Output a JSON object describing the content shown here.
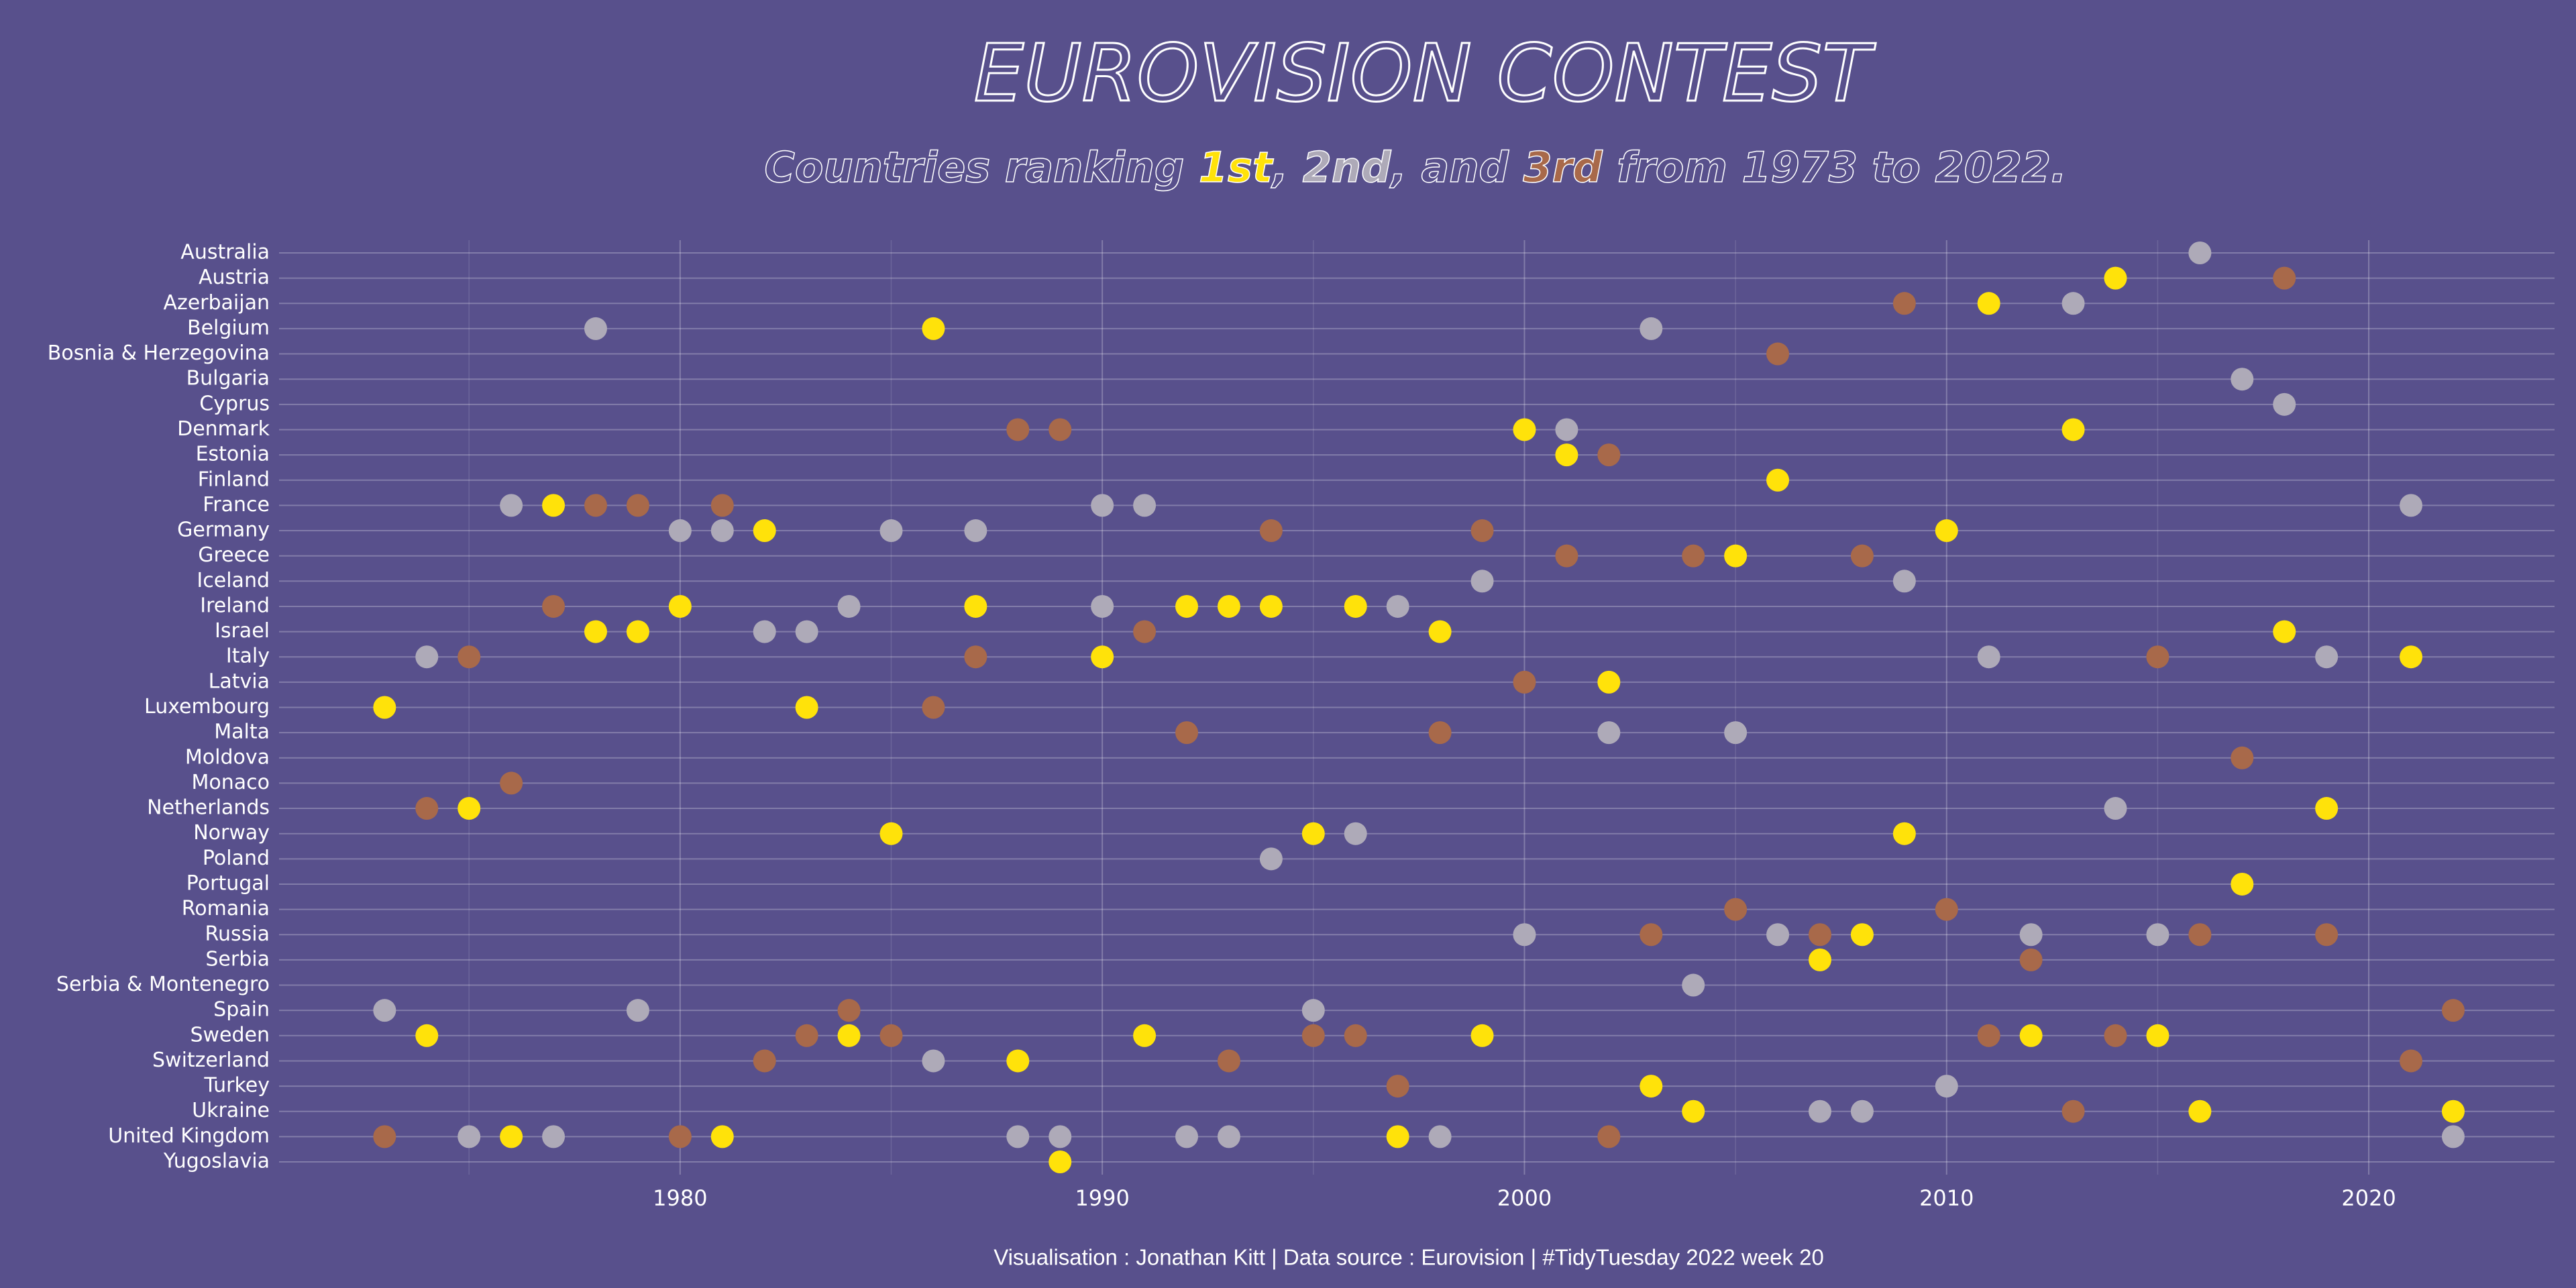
{
  "chart_data": {
    "type": "scatter",
    "title": "EUROVISION CONTEST",
    "subtitle": [
      "Countries ranking ",
      ", ",
      ", and ",
      " from 1973 to 2022."
    ],
    "caption": "Visualisation : Jonathan Kitt | Data source : Eurovision | #TidyTuesday 2022 week 20",
    "categories": [
      "Australia",
      "Austria",
      "Azerbaijan",
      "Belgium",
      "Bosnia & Herzegovina",
      "Bulgaria",
      "Cyprus",
      "Denmark",
      "Estonia",
      "Finland",
      "France",
      "Germany",
      "Greece",
      "Iceland",
      "Ireland",
      "Israel",
      "Italy",
      "Latvia",
      "Luxembourg",
      "Malta",
      "Moldova",
      "Monaco",
      "Netherlands",
      "Norway",
      "Poland",
      "Portugal",
      "Romania",
      "Russia",
      "Serbia",
      "Serbia & Montenegro",
      "Spain",
      "Sweden",
      "Switzerland",
      "Turkey",
      "Ukraine",
      "United Kingdom",
      "Yugoslavia"
    ],
    "xlim": [
      1970.5,
      2024.4
    ],
    "xticks": [
      1980,
      1990,
      2000,
      2010,
      2020
    ],
    "x_minor_ticks": [
      1975,
      1985,
      1995,
      2005,
      2015
    ],
    "grid": true,
    "series": [
      {
        "name": "1st",
        "color": "#ffe20a",
        "x": [
          2014,
          2011,
          1986,
          2000,
          2013,
          2001,
          2006,
          1977,
          1982,
          2010,
          2005,
          1980,
          1987,
          1992,
          1993,
          1994,
          1996,
          1978,
          1979,
          1998,
          2018,
          1990,
          2021,
          2002,
          1973,
          1983,
          1975,
          2019,
          1985,
          1995,
          2009,
          2017,
          2008,
          2007,
          1974,
          1984,
          1991,
          1999,
          2012,
          2015,
          1988,
          2003,
          2004,
          2016,
          2022,
          1976,
          1981,
          1997,
          1989
        ],
        "y": [
          "Austria",
          "Azerbaijan",
          "Belgium",
          "Denmark",
          "Denmark",
          "Estonia",
          "Finland",
          "France",
          "Germany",
          "Germany",
          "Greece",
          "Ireland",
          "Ireland",
          "Ireland",
          "Ireland",
          "Ireland",
          "Ireland",
          "Israel",
          "Israel",
          "Israel",
          "Israel",
          "Italy",
          "Italy",
          "Latvia",
          "Luxembourg",
          "Luxembourg",
          "Netherlands",
          "Netherlands",
          "Norway",
          "Norway",
          "Norway",
          "Portugal",
          "Russia",
          "Serbia",
          "Sweden",
          "Sweden",
          "Sweden",
          "Sweden",
          "Sweden",
          "Sweden",
          "Switzerland",
          "Turkey",
          "Ukraine",
          "Ukraine",
          "Ukraine",
          "United Kingdom",
          "United Kingdom",
          "United Kingdom",
          "Yugoslavia"
        ]
      },
      {
        "name": "2nd",
        "color": "#aeaab8",
        "x": [
          2016,
          2013,
          1978,
          2003,
          2017,
          2018,
          2001,
          1976,
          1990,
          1991,
          2021,
          1980,
          1981,
          1985,
          1987,
          1999,
          2009,
          1984,
          1990,
          1997,
          1982,
          1983,
          1974,
          2011,
          2019,
          2002,
          2005,
          2014,
          1996,
          1994,
          2000,
          2006,
          2012,
          2015,
          2004,
          1973,
          1979,
          1995,
          1986,
          2010,
          2007,
          2008,
          1975,
          1977,
          1988,
          1989,
          1992,
          1993,
          1998,
          2022
        ],
        "y": [
          "Australia",
          "Azerbaijan",
          "Belgium",
          "Belgium",
          "Bulgaria",
          "Cyprus",
          "Denmark",
          "France",
          "France",
          "France",
          "France",
          "Germany",
          "Germany",
          "Germany",
          "Germany",
          "Iceland",
          "Iceland",
          "Ireland",
          "Ireland",
          "Ireland",
          "Israel",
          "Israel",
          "Italy",
          "Italy",
          "Italy",
          "Malta",
          "Malta",
          "Netherlands",
          "Norway",
          "Poland",
          "Russia",
          "Russia",
          "Russia",
          "Russia",
          "Serbia & Montenegro",
          "Spain",
          "Spain",
          "Spain",
          "Switzerland",
          "Turkey",
          "Ukraine",
          "Ukraine",
          "United Kingdom",
          "United Kingdom",
          "United Kingdom",
          "United Kingdom",
          "United Kingdom",
          "United Kingdom",
          "United Kingdom",
          "United Kingdom"
        ]
      },
      {
        "name": "3rd",
        "color": "#a8694a",
        "x": [
          2018,
          2009,
          2006,
          1988,
          1989,
          2002,
          1978,
          1979,
          1981,
          1994,
          1999,
          2001,
          2004,
          2008,
          1977,
          1991,
          1975,
          1987,
          2015,
          2000,
          1986,
          1992,
          1998,
          2017,
          1976,
          1974,
          2005,
          2010,
          2003,
          2007,
          2016,
          2019,
          2012,
          1984,
          2022,
          1983,
          1985,
          1995,
          1996,
          2011,
          2014,
          1982,
          1993,
          2021,
          1997,
          2013,
          1973,
          1980,
          2002
        ],
        "y": [
          "Austria",
          "Azerbaijan",
          "Bosnia & Herzegovina",
          "Denmark",
          "Denmark",
          "Estonia",
          "France",
          "France",
          "France",
          "Germany",
          "Germany",
          "Greece",
          "Greece",
          "Greece",
          "Ireland",
          "Israel",
          "Italy",
          "Italy",
          "Italy",
          "Latvia",
          "Luxembourg",
          "Malta",
          "Malta",
          "Moldova",
          "Monaco",
          "Netherlands",
          "Romania",
          "Romania",
          "Russia",
          "Russia",
          "Russia",
          "Russia",
          "Serbia",
          "Spain",
          "Spain",
          "Sweden",
          "Sweden",
          "Sweden",
          "Sweden",
          "Sweden",
          "Sweden",
          "Switzerland",
          "Switzerland",
          "Switzerland",
          "Turkey",
          "Ukraine",
          "United Kingdom",
          "United Kingdom",
          "United Kingdom"
        ]
      }
    ]
  }
}
